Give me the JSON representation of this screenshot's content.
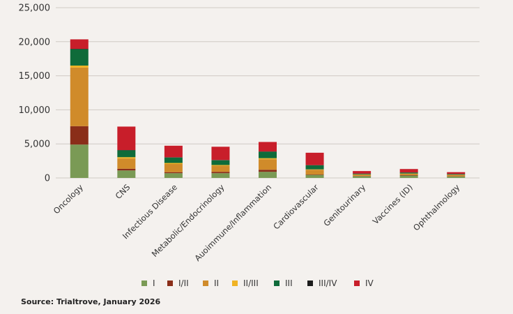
{
  "chart_data": {
    "type": "bar",
    "stacked": true,
    "categories": [
      "Oncology",
      "CNS",
      "Infectious Disease",
      "Metabolic/Endocrinology",
      "Auoimmune/Inflammation",
      "Cardiovascular",
      "Genitourinary",
      "Vaccines (ID)",
      "Ophthalmology"
    ],
    "series": [
      {
        "name": "I",
        "color": "#7a9a55",
        "values": [
          4900,
          1100,
          700,
          700,
          900,
          450,
          250,
          350,
          200
        ]
      },
      {
        "name": "I/II",
        "color": "#8a2e19",
        "values": [
          2700,
          250,
          150,
          200,
          300,
          60,
          40,
          60,
          40
        ]
      },
      {
        "name": "II",
        "color": "#d08b2a",
        "values": [
          8600,
          1500,
          1200,
          900,
          1550,
          700,
          200,
          200,
          200
        ]
      },
      {
        "name": "II/III",
        "color": "#f0b323",
        "values": [
          300,
          200,
          150,
          100,
          150,
          50,
          30,
          40,
          30
        ]
      },
      {
        "name": "III",
        "color": "#0f6b3a",
        "values": [
          2400,
          1000,
          800,
          700,
          950,
          600,
          100,
          150,
          100
        ]
      },
      {
        "name": "III/IV",
        "color": "#1c1c1c",
        "values": [
          50,
          40,
          30,
          30,
          30,
          20,
          10,
          10,
          10
        ]
      },
      {
        "name": "IV",
        "color": "#c81e2a",
        "values": [
          1400,
          3450,
          1700,
          1950,
          1400,
          1820,
          380,
          500,
          270
        ]
      }
    ],
    "yticks": [
      "0",
      "5,000",
      "10,000",
      "15,000",
      "20,000",
      "25,000"
    ],
    "ylim": [
      0,
      25000
    ],
    "grid": true,
    "legend_position": "bottom"
  },
  "source_note": "Source: Trialtrove, January 2026"
}
